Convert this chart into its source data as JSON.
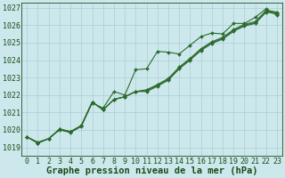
{
  "xlabel": "Graphe pression niveau de la mer (hPa)",
  "background_color": "#cde8ec",
  "grid_color": "#aacdd4",
  "line_color": "#2d6b2d",
  "xlim": [
    -0.5,
    23.5
  ],
  "ylim": [
    1018.5,
    1027.3
  ],
  "yticks": [
    1019,
    1020,
    1021,
    1022,
    1023,
    1024,
    1025,
    1026,
    1027
  ],
  "xticks": [
    0,
    1,
    2,
    3,
    4,
    5,
    6,
    7,
    8,
    9,
    10,
    11,
    12,
    13,
    14,
    15,
    16,
    17,
    18,
    19,
    20,
    21,
    22,
    23
  ],
  "series": [
    [
      1019.6,
      1019.3,
      1019.5,
      1020.0,
      1019.85,
      1020.2,
      1021.55,
      1021.25,
      1022.2,
      1022.0,
      1023.45,
      1023.5,
      1024.5,
      1024.45,
      1024.35,
      1024.85,
      1025.35,
      1025.55,
      1025.5,
      1026.1,
      1026.1,
      1026.45,
      1026.95,
      1026.55
    ],
    [
      1019.6,
      1019.25,
      1019.5,
      1020.05,
      1019.9,
      1020.25,
      1021.6,
      1021.15,
      1021.75,
      1021.9,
      1022.2,
      1022.2,
      1022.5,
      1022.85,
      1023.5,
      1024.0,
      1024.55,
      1024.95,
      1025.2,
      1025.65,
      1025.95,
      1026.1,
      1026.75,
      1026.65
    ],
    [
      1019.6,
      1019.25,
      1019.5,
      1020.05,
      1019.9,
      1020.25,
      1021.6,
      1021.15,
      1021.75,
      1021.9,
      1022.2,
      1022.25,
      1022.55,
      1022.9,
      1023.55,
      1024.05,
      1024.6,
      1025.0,
      1025.25,
      1025.7,
      1026.0,
      1026.15,
      1026.8,
      1026.7
    ],
    [
      1019.6,
      1019.25,
      1019.5,
      1020.05,
      1019.9,
      1020.25,
      1021.6,
      1021.15,
      1021.75,
      1021.9,
      1022.2,
      1022.3,
      1022.6,
      1022.95,
      1023.6,
      1024.1,
      1024.65,
      1025.05,
      1025.3,
      1025.75,
      1026.05,
      1026.2,
      1026.85,
      1026.75
    ]
  ],
  "marker": "D",
  "markersize": 2.0,
  "linewidth": 0.8,
  "xlabel_fontsize": 7.5,
  "tick_fontsize": 6.0,
  "tick_color": "#1a4d1a",
  "border_color": "#1a4d1a"
}
